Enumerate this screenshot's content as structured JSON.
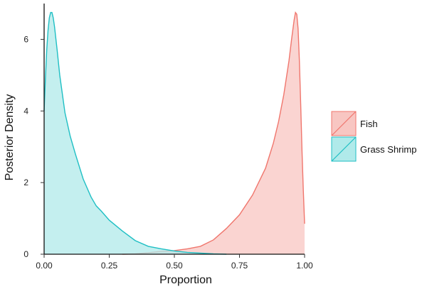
{
  "chart_data": {
    "type": "area",
    "title": "",
    "xlabel": "Proportion",
    "ylabel": "Posterior Density",
    "xlim": [
      0,
      1
    ],
    "ylim": [
      0,
      7
    ],
    "x_ticks": [
      0,
      0.25,
      0.5,
      0.75,
      1
    ],
    "x_tick_labels": [
      "0.00",
      "0.25",
      "0.50",
      "0.75",
      "1.00"
    ],
    "y_ticks": [
      0,
      2,
      4,
      6
    ],
    "y_tick_labels": [
      "0",
      "2",
      "4",
      "6"
    ],
    "grid": false,
    "legend_position": "right",
    "series": [
      {
        "name": "Fish",
        "fill": "#f8c6c2",
        "stroke": "#f0766d",
        "x": [
          0.3,
          0.35,
          0.4,
          0.45,
          0.5,
          0.55,
          0.6,
          0.65,
          0.7,
          0.75,
          0.8,
          0.85,
          0.88,
          0.9,
          0.92,
          0.94,
          0.95,
          0.96,
          0.965,
          0.97,
          0.975,
          0.98,
          0.985,
          0.99,
          0.995,
          1.0
        ],
        "y": [
          0,
          0.01,
          0.04,
          0.08,
          0.1,
          0.15,
          0.22,
          0.4,
          0.72,
          1.1,
          1.65,
          2.4,
          3.1,
          3.7,
          4.45,
          5.4,
          6.0,
          6.55,
          6.75,
          6.7,
          6.3,
          5.4,
          4.2,
          2.9,
          1.8,
          0.85
        ]
      },
      {
        "name": "Grass Shrimp",
        "fill": "#b0eaea",
        "stroke": "#1fbfc4",
        "x": [
          0.0,
          0.005,
          0.01,
          0.015,
          0.02,
          0.025,
          0.03,
          0.035,
          0.04,
          0.05,
          0.06,
          0.08,
          0.1,
          0.12,
          0.15,
          0.18,
          0.2,
          0.22,
          0.25,
          0.3,
          0.35,
          0.4,
          0.45,
          0.5,
          0.55,
          0.6,
          0.65,
          0.7
        ],
        "y": [
          4.0,
          4.9,
          5.7,
          6.25,
          6.6,
          6.75,
          6.75,
          6.6,
          6.35,
          5.7,
          5.0,
          3.95,
          3.3,
          2.8,
          2.1,
          1.6,
          1.35,
          1.2,
          0.95,
          0.65,
          0.38,
          0.22,
          0.15,
          0.09,
          0.05,
          0.03,
          0.01,
          0.0
        ]
      }
    ]
  }
}
